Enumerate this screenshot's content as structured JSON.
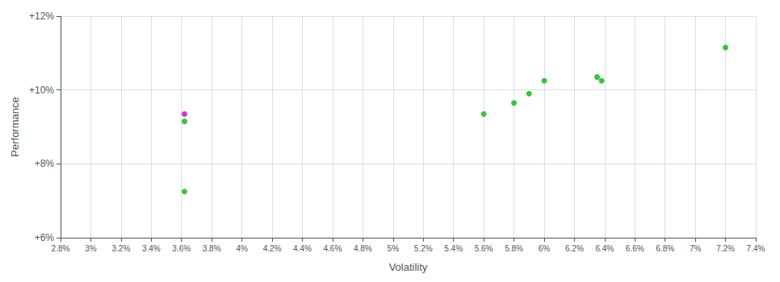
{
  "chart_data": {
    "type": "scatter",
    "xlabel": "Volatility",
    "ylabel": "Performance",
    "xlim": [
      0.028,
      0.074
    ],
    "ylim": [
      0.06,
      0.12
    ],
    "xticks": [
      {
        "value": 0.028,
        "label": "2.8%"
      },
      {
        "value": 0.03,
        "label": "3%"
      },
      {
        "value": 0.032,
        "label": "3.2%"
      },
      {
        "value": 0.034,
        "label": "3.4%"
      },
      {
        "value": 0.036,
        "label": "3.6%"
      },
      {
        "value": 0.038,
        "label": "3.8%"
      },
      {
        "value": 0.04,
        "label": "4%"
      },
      {
        "value": 0.042,
        "label": "4.2%"
      },
      {
        "value": 0.044,
        "label": "4.4%"
      },
      {
        "value": 0.046,
        "label": "4.6%"
      },
      {
        "value": 0.048,
        "label": "4.8%"
      },
      {
        "value": 0.05,
        "label": "5%"
      },
      {
        "value": 0.052,
        "label": "5.2%"
      },
      {
        "value": 0.054,
        "label": "5.4%"
      },
      {
        "value": 0.056,
        "label": "5.6%"
      },
      {
        "value": 0.058,
        "label": "5.8%"
      },
      {
        "value": 0.06,
        "label": "6%"
      },
      {
        "value": 0.062,
        "label": "6.2%"
      },
      {
        "value": 0.064,
        "label": "6.4%"
      },
      {
        "value": 0.066,
        "label": "6.6%"
      },
      {
        "value": 0.068,
        "label": "6.8%"
      },
      {
        "value": 0.07,
        "label": "7%"
      },
      {
        "value": 0.072,
        "label": "7.2%"
      },
      {
        "value": 0.074,
        "label": "7.4%"
      }
    ],
    "yticks": [
      {
        "value": 0.06,
        "label": "+6%"
      },
      {
        "value": 0.08,
        "label": "+8%"
      },
      {
        "value": 0.1,
        "label": "+10%"
      },
      {
        "value": 0.12,
        "label": "+12%"
      }
    ],
    "grid": true,
    "series": [
      {
        "color": "#00bb00",
        "x": [
          0.0362,
          0.0362,
          0.056,
          0.058,
          0.059,
          0.06,
          0.0635,
          0.0638,
          0.072
        ],
        "values": [
          0.0915,
          0.0725,
          0.0935,
          0.0965,
          0.099,
          0.1025,
          0.1035,
          0.1025,
          0.1115
        ]
      },
      {
        "color": "#cc00cc",
        "x": [
          0.0362
        ],
        "values": [
          0.0935
        ]
      }
    ]
  }
}
